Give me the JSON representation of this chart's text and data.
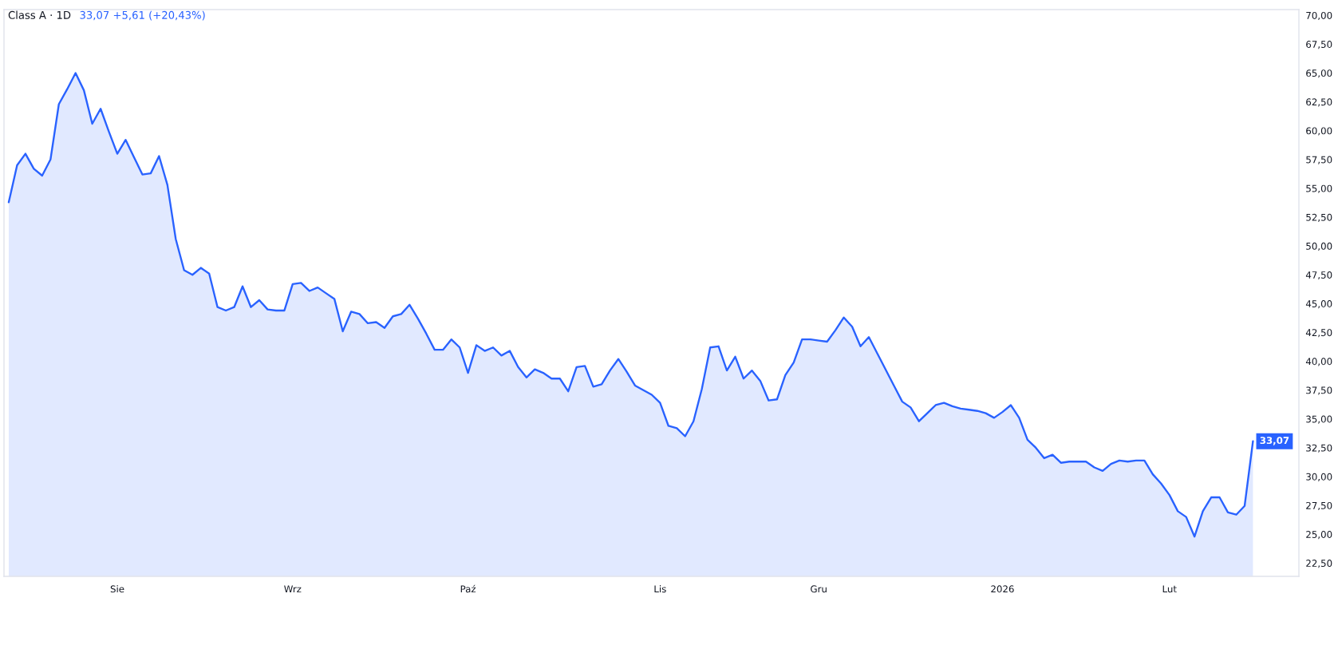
{
  "chart_data": {
    "type": "area",
    "title": "Class A · 1D",
    "subtitle": "33,07 +5,61 (+20,43%)",
    "categories": [
      null,
      null,
      null,
      null,
      null,
      null,
      null,
      null,
      null,
      null,
      null,
      null,
      null,
      "Sie",
      null,
      null,
      null,
      null,
      null,
      null,
      null,
      null,
      null,
      null,
      null,
      null,
      null,
      null,
      null,
      null,
      null,
      null,
      null,
      null,
      "Wrz",
      null,
      null,
      null,
      null,
      null,
      null,
      null,
      null,
      null,
      null,
      null,
      null,
      null,
      null,
      null,
      null,
      null,
      null,
      null,
      null,
      "Paź",
      null,
      null,
      null,
      null,
      null,
      null,
      null,
      null,
      null,
      null,
      null,
      null,
      null,
      null,
      null,
      null,
      null,
      null,
      null,
      null,
      null,
      null,
      "Lis",
      null,
      null,
      null,
      null,
      null,
      null,
      null,
      null,
      null,
      null,
      null,
      null,
      null,
      null,
      null,
      null,
      null,
      null,
      "Gru",
      null,
      null,
      null,
      null,
      null,
      null,
      null,
      null,
      null,
      null,
      null,
      null,
      null,
      null,
      null,
      null,
      null,
      null,
      null,
      null,
      null,
      "2026",
      null,
      null,
      null,
      null,
      null,
      null,
      null,
      null,
      null,
      null,
      null,
      null,
      null,
      null,
      null,
      null,
      null,
      null,
      null,
      "Lut",
      null,
      null,
      null,
      null,
      null,
      null,
      null,
      null,
      null,
      null
    ],
    "series": [
      {
        "color": "#2962ff",
        "values": [
          53.8,
          57.0,
          58.0,
          56.7,
          56.1,
          57.5,
          62.3,
          63.6,
          65.0,
          63.5,
          60.6,
          61.9,
          59.9,
          58.0,
          59.2,
          57.7,
          56.2,
          56.3,
          57.8,
          55.3,
          50.6,
          47.9,
          47.5,
          48.1,
          47.6,
          44.7,
          44.4,
          44.7,
          46.5,
          44.7,
          45.3,
          44.5,
          44.4,
          44.4,
          46.7,
          46.8,
          46.1,
          46.4,
          45.9,
          45.4,
          42.6,
          44.3,
          44.1,
          43.3,
          43.4,
          42.9,
          43.9,
          44.1,
          44.9,
          43.7,
          42.4,
          41.0,
          41.0,
          41.9,
          41.2,
          39.0,
          41.4,
          40.9,
          41.2,
          40.5,
          40.9,
          39.5,
          38.6,
          39.3,
          39.0,
          38.5,
          38.5,
          37.4,
          39.5,
          39.6,
          37.8,
          38.0,
          39.2,
          40.2,
          39.1,
          37.9,
          37.5,
          37.1,
          36.4,
          34.4,
          34.2,
          33.5,
          34.8,
          37.6,
          41.2,
          41.3,
          39.2,
          40.4,
          38.5,
          39.2,
          38.3,
          36.6,
          36.7,
          38.8,
          39.9,
          41.9,
          41.9,
          41.8,
          41.7,
          42.7,
          43.8,
          43.0,
          41.3,
          42.1,
          40.7,
          39.3,
          37.9,
          36.5,
          36.0,
          34.8,
          35.5,
          36.2,
          36.4,
          36.1,
          35.9,
          35.8,
          35.7,
          35.5,
          35.1,
          35.6,
          36.2,
          35.1,
          33.2,
          32.5,
          31.6,
          31.9,
          31.2,
          31.3,
          31.3,
          31.3,
          30.8,
          30.5,
          31.1,
          31.4,
          31.3,
          31.4,
          31.4,
          30.2,
          29.4,
          28.4,
          27.0,
          26.5,
          24.8,
          27.0,
          28.2,
          28.2,
          26.9,
          26.7,
          27.46,
          33.07
        ]
      }
    ],
    "ylim": [
      21.35,
      70.5
    ],
    "yticks": [
      {
        "value": 22.5,
        "label": "22,50"
      },
      {
        "value": 25,
        "label": "25,00"
      },
      {
        "value": 27.5,
        "label": "27,50"
      },
      {
        "value": 30,
        "label": "30,00"
      },
      {
        "value": 32.5,
        "label": "32,50"
      },
      {
        "value": 35,
        "label": "35,00"
      },
      {
        "value": 37.5,
        "label": "37,50"
      },
      {
        "value": 40,
        "label": "40,00"
      },
      {
        "value": 42.5,
        "label": "42,50"
      },
      {
        "value": 45,
        "label": "45,00"
      },
      {
        "value": 47.5,
        "label": "47,50"
      },
      {
        "value": 50,
        "label": "50,00"
      },
      {
        "value": 52.5,
        "label": "52,50"
      },
      {
        "value": 55,
        "label": "55,00"
      },
      {
        "value": 57.5,
        "label": "57,50"
      },
      {
        "value": 60,
        "label": "60,00"
      },
      {
        "value": 62.5,
        "label": "62,50"
      },
      {
        "value": 65,
        "label": "65,00"
      },
      {
        "value": 67.5,
        "label": "67,50"
      },
      {
        "value": 70,
        "label": "70,00"
      }
    ],
    "annotations": [
      "33,07"
    ]
  }
}
